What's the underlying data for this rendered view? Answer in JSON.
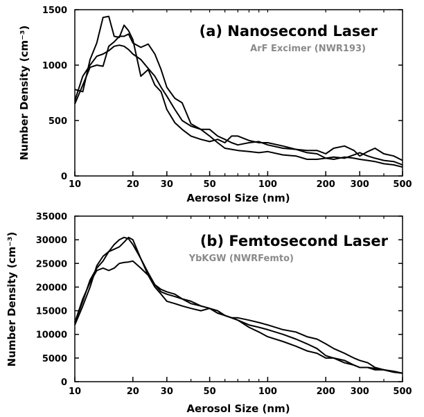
{
  "chart_data": [
    {
      "type": "line",
      "title": "(a) Nanosecond Laser",
      "subtitle": "ArF Excimer (NWR193)",
      "xlabel": "Aerosol Size (nm)",
      "ylabel": "Number Density (cm⁻³)",
      "xscale": "log",
      "xlim": [
        10,
        500
      ],
      "ylim": [
        0,
        1500
      ],
      "xticks": [
        10,
        20,
        30,
        50,
        100,
        200,
        300,
        500
      ],
      "xticklabels": [
        "10",
        "20",
        "30",
        "50",
        "100",
        "200",
        "300",
        "500"
      ],
      "yticks": [
        0,
        500,
        1000,
        1500
      ],
      "yticklabels": [
        "0",
        "500",
        "1000",
        "1500"
      ],
      "grid": false,
      "series": [
        {
          "x": [
            10,
            11,
            12,
            13,
            14,
            15,
            16,
            17,
            18,
            19,
            20,
            22,
            24,
            26,
            28,
            30,
            33,
            36,
            40,
            45,
            50,
            55,
            60,
            65,
            70,
            80,
            90,
            100,
            120,
            140,
            160,
            180,
            200,
            220,
            250,
            280,
            300,
            330,
            360,
            400,
            450,
            500
          ],
          "y": [
            780,
            760,
            1050,
            1200,
            1430,
            1440,
            1260,
            1250,
            1360,
            1310,
            1230,
            900,
            960,
            820,
            760,
            600,
            480,
            420,
            360,
            330,
            310,
            330,
            300,
            360,
            360,
            320,
            300,
            300,
            270,
            240,
            210,
            200,
            160,
            170,
            160,
            190,
            210,
            180,
            160,
            140,
            130,
            100
          ]
        },
        {
          "x": [
            10,
            11,
            12,
            13,
            14,
            15,
            16,
            17,
            18,
            19,
            20,
            22,
            24,
            26,
            28,
            30,
            33,
            36,
            40,
            45,
            50,
            55,
            60,
            65,
            70,
            80,
            90,
            100,
            120,
            140,
            160,
            180,
            200,
            220,
            250,
            280,
            300,
            330,
            360,
            400,
            450,
            500
          ],
          "y": [
            650,
            820,
            980,
            1000,
            990,
            1170,
            1210,
            1260,
            1260,
            1280,
            1200,
            1160,
            1190,
            1100,
            960,
            800,
            700,
            660,
            470,
            420,
            420,
            360,
            330,
            300,
            280,
            300,
            310,
            280,
            250,
            240,
            230,
            230,
            200,
            250,
            270,
            230,
            180,
            220,
            250,
            200,
            180,
            140
          ]
        },
        {
          "x": [
            10,
            11,
            12,
            13,
            14,
            15,
            16,
            17,
            18,
            19,
            20,
            22,
            24,
            26,
            28,
            30,
            33,
            36,
            40,
            45,
            50,
            55,
            60,
            65,
            70,
            80,
            90,
            100,
            120,
            140,
            160,
            180,
            200,
            220,
            250,
            280,
            300,
            330,
            360,
            400,
            450,
            500
          ],
          "y": [
            680,
            900,
            1000,
            1080,
            1100,
            1130,
            1170,
            1180,
            1170,
            1140,
            1100,
            1050,
            970,
            900,
            800,
            720,
            600,
            500,
            450,
            420,
            360,
            300,
            250,
            240,
            230,
            220,
            210,
            220,
            190,
            180,
            150,
            150,
            160,
            150,
            170,
            160,
            150,
            140,
            130,
            110,
            100,
            80
          ]
        }
      ]
    },
    {
      "type": "line",
      "title": "(b) Femtosecond Laser",
      "subtitle": "YbKGW (NWRFemto)",
      "xlabel": "Aerosol Size (nm)",
      "ylabel": "Number Density (cm⁻³)",
      "xscale": "log",
      "xlim": [
        10,
        500
      ],
      "ylim": [
        0,
        35000
      ],
      "xticks": [
        10,
        20,
        30,
        50,
        100,
        200,
        300,
        500
      ],
      "xticklabels": [
        "10",
        "20",
        "30",
        "50",
        "100",
        "200",
        "300",
        "500"
      ],
      "yticks": [
        0,
        5000,
        10000,
        15000,
        20000,
        25000,
        30000,
        35000
      ],
      "yticklabels": [
        "0",
        "5000",
        "10000",
        "15000",
        "20000",
        "25000",
        "30000",
        "35000"
      ],
      "grid": false,
      "series": [
        {
          "x": [
            10,
            11,
            12,
            13,
            14,
            15,
            16,
            17,
            18,
            19,
            20,
            22,
            24,
            26,
            28,
            30,
            33,
            36,
            40,
            45,
            50,
            55,
            60,
            65,
            70,
            80,
            90,
            100,
            120,
            140,
            160,
            180,
            200,
            220,
            250,
            280,
            300,
            330,
            360,
            400,
            450,
            500
          ],
          "y": [
            12500,
            17000,
            21500,
            24000,
            25500,
            27500,
            29000,
            30000,
            30500,
            30200,
            29000,
            26000,
            22500,
            20500,
            19500,
            19000,
            18500,
            17500,
            16500,
            16000,
            15500,
            14500,
            14000,
            13500,
            13000,
            11500,
            10500,
            9500,
            8500,
            7500,
            6500,
            6000,
            5000,
            5000,
            4500,
            3500,
            3000,
            3000,
            2500,
            2500,
            2000,
            1800
          ]
        },
        {
          "x": [
            10,
            11,
            12,
            13,
            14,
            15,
            16,
            17,
            18,
            19,
            20,
            22,
            24,
            26,
            28,
            30,
            33,
            36,
            40,
            45,
            50,
            55,
            60,
            65,
            70,
            80,
            90,
            100,
            120,
            140,
            160,
            180,
            200,
            220,
            250,
            280,
            300,
            330,
            360,
            400,
            450,
            500
          ],
          "y": [
            12000,
            16000,
            20000,
            24500,
            26500,
            27500,
            28000,
            28500,
            29500,
            30500,
            30000,
            26000,
            23000,
            20500,
            19000,
            18500,
            18000,
            17500,
            17000,
            16000,
            15500,
            15000,
            14000,
            13500,
            13500,
            13000,
            12500,
            12000,
            11000,
            10500,
            9500,
            9000,
            8000,
            7000,
            6000,
            5000,
            4500,
            4000,
            3000,
            2500,
            2000,
            1800
          ]
        },
        {
          "x": [
            10,
            11,
            12,
            13,
            14,
            15,
            16,
            17,
            18,
            19,
            20,
            22,
            24,
            26,
            28,
            30,
            33,
            36,
            40,
            45,
            50,
            55,
            60,
            65,
            70,
            80,
            90,
            100,
            120,
            140,
            160,
            180,
            200,
            220,
            250,
            280,
            300,
            330,
            360,
            400,
            450,
            500
          ],
          "y": [
            12500,
            17500,
            21000,
            23500,
            24000,
            23500,
            24000,
            25000,
            25200,
            25300,
            25500,
            24000,
            22500,
            20000,
            18500,
            17000,
            16500,
            16000,
            15500,
            15000,
            15500,
            14500,
            14000,
            13500,
            13000,
            12000,
            11500,
            11000,
            10000,
            9000,
            8000,
            7000,
            5500,
            5000,
            4000,
            3500,
            3000,
            3000,
            2800,
            2500,
            2200,
            1800
          ]
        }
      ]
    }
  ]
}
